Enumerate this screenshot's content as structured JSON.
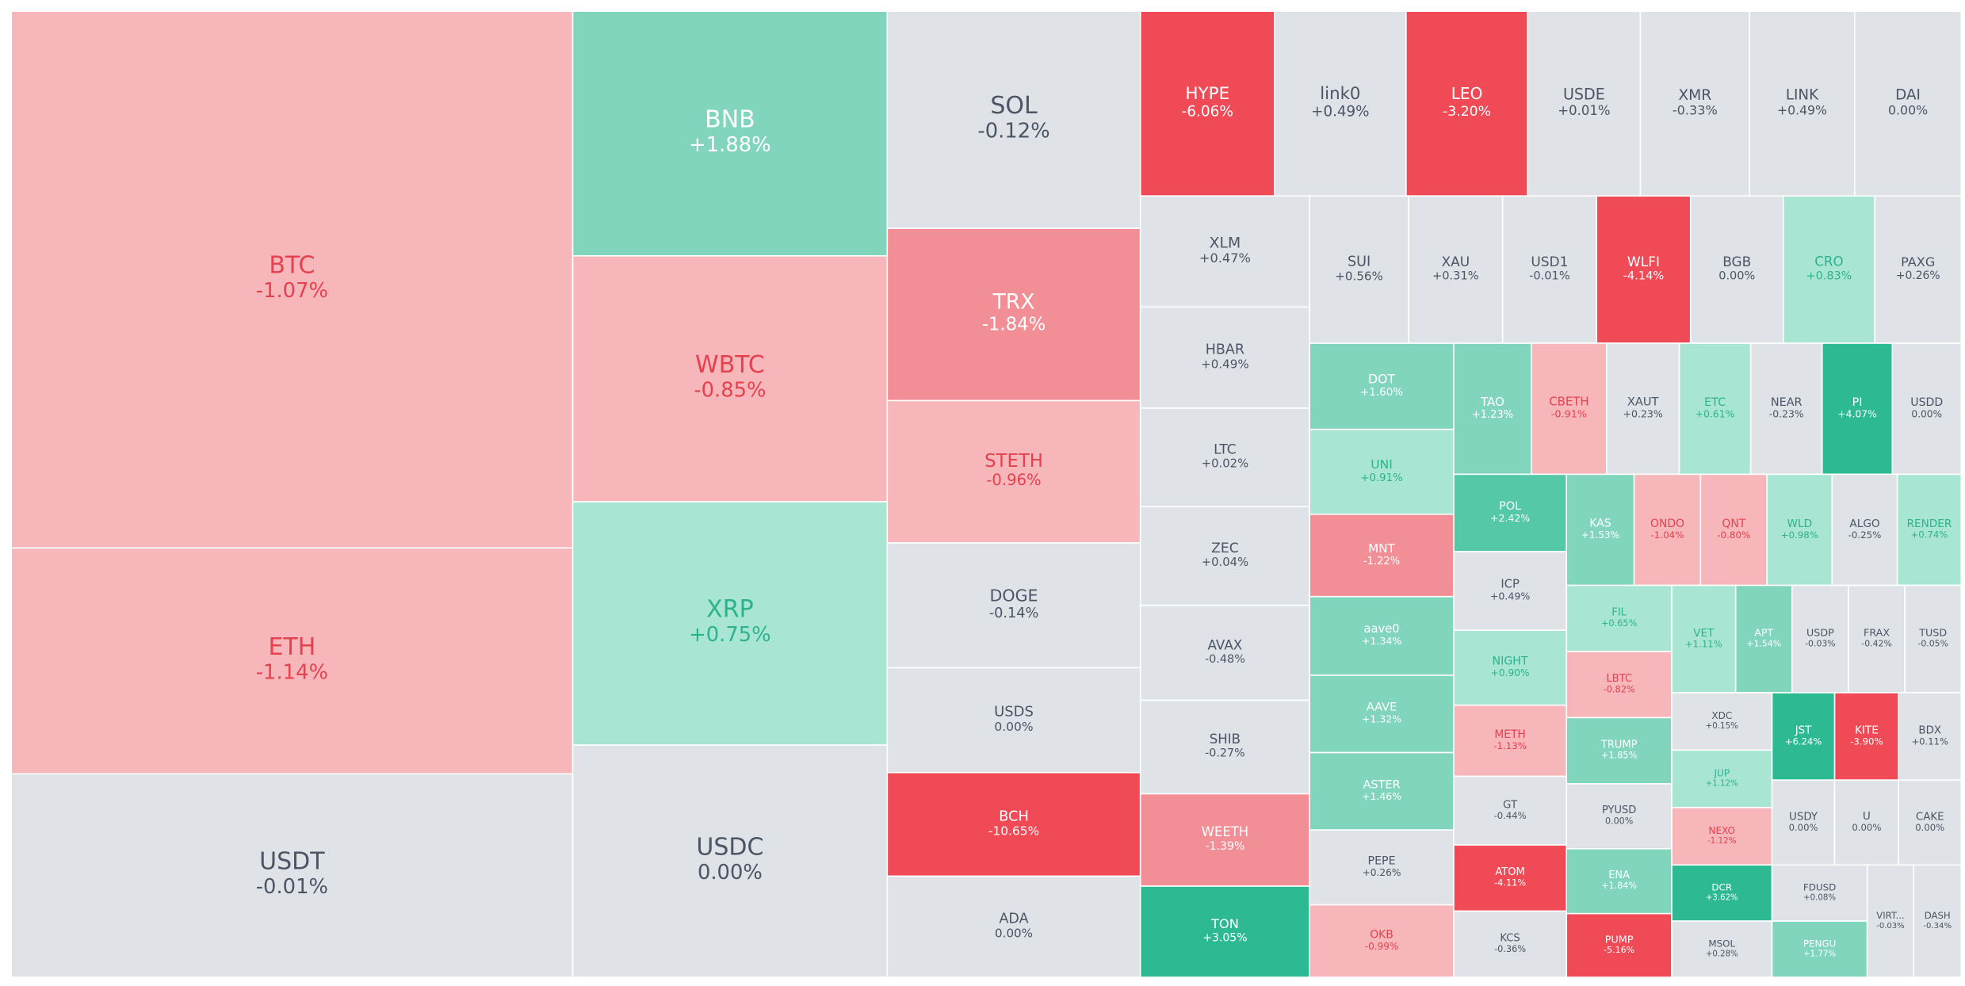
{
  "chart_data": {
    "type": "treemap",
    "categories": [
      "BTC",
      "ETH",
      "USDT",
      "BNB",
      "WBTC",
      "XRP",
      "USDC",
      "SOL",
      "TRX",
      "STETH",
      "DOGE",
      "USDS",
      "BCH",
      "ADA",
      "HYPE",
      "link0",
      "LEO",
      "USDE",
      "XMR",
      "LINK",
      "DAI",
      "XLM",
      "HBAR",
      "LTC",
      "ZEC",
      "AVAX",
      "SHIB",
      "WEETH",
      "TON",
      "SUI",
      "XAU",
      "USD1",
      "WLFI",
      "BGB",
      "CRO",
      "PAXG",
      "DOT",
      "UNI",
      "MNT",
      "aave0",
      "AAVE",
      "ASTER",
      "PEPE",
      "OKB",
      "TAO",
      "CBETH",
      "XAUT",
      "ETC",
      "NEAR",
      "PI",
      "USDD",
      "POL",
      "ICP",
      "NIGHT",
      "METH",
      "GT",
      "ATOM",
      "KCS",
      "KAS",
      "ONDO",
      "QNT",
      "WLD",
      "ALGO",
      "RENDER",
      "FIL",
      "LBTC",
      "TRUMP",
      "PYUSD",
      "ENA",
      "PUMP",
      "VET",
      "APT",
      "USDP",
      "FRAX",
      "TUSD",
      "XDC",
      "JUP",
      "NEXO",
      "DCR",
      "MSOL",
      "JST",
      "KITE",
      "BDX",
      "USDY",
      "U",
      "CAKE",
      "FDUSD",
      "PENGU",
      "VIRT...",
      "DASH"
    ],
    "values": [
      -1.07,
      -1.14,
      -0.01,
      1.88,
      -0.85,
      0.75,
      0,
      -0.12,
      -1.84,
      -0.96,
      -0.14,
      0,
      -10.65,
      0,
      -6.06,
      0.49,
      -3.2,
      0.01,
      -0.33,
      0.49,
      0,
      0.47,
      0.49,
      0.02,
      0.04,
      -0.48,
      -0.27,
      -1.39,
      3.05,
      0.56,
      0.31,
      -0.01,
      -4.14,
      0,
      0.83,
      0.26,
      1.6,
      0.91,
      -1.22,
      1.34,
      1.32,
      1.46,
      0.26,
      -0.99,
      1.23,
      -0.91,
      0.23,
      0.61,
      -0.23,
      4.07,
      0,
      2.42,
      0.49,
      0.9,
      -1.13,
      -0.44,
      -4.11,
      -0.36,
      1.53,
      -1.04,
      -0.8,
      0.98,
      -0.25,
      0.74,
      0.65,
      -0.82,
      1.85,
      0,
      1.84,
      -5.16,
      1.11,
      1.54,
      -0.03,
      -0.42,
      -0.05,
      0.15,
      1.12,
      -1.12,
      3.62,
      0.28,
      6.24,
      -3.9,
      0.11,
      0,
      0,
      0,
      0.08,
      1.77,
      -0.03,
      -0.34
    ],
    "value_labels": [
      "-1.07%",
      "-1.14%",
      "-0.01%",
      "+1.88%",
      "-0.85%",
      "+0.75%",
      "0.00%",
      "-0.12%",
      "-1.84%",
      "-0.96%",
      "-0.14%",
      "0.00%",
      "-10.65%",
      "0.00%",
      "-6.06%",
      "+0.49%",
      "-3.20%",
      "+0.01%",
      "-0.33%",
      "+0.49%",
      "0.00%",
      "+0.47%",
      "+0.49%",
      "+0.02%",
      "+0.04%",
      "-0.48%",
      "-0.27%",
      "-1.39%",
      "+3.05%",
      "+0.56%",
      "+0.31%",
      "-0.01%",
      "-4.14%",
      "0.00%",
      "+0.83%",
      "+0.26%",
      "+1.60%",
      "+0.91%",
      "-1.22%",
      "+1.34%",
      "+1.32%",
      "+1.46%",
      "+0.26%",
      "-0.99%",
      "+1.23%",
      "-0.91%",
      "+0.23%",
      "+0.61%",
      "-0.23%",
      "+4.07%",
      "0.00%",
      "+2.42%",
      "+0.49%",
      "+0.90%",
      "-1.13%",
      "-0.44%",
      "-4.11%",
      "-0.36%",
      "+1.53%",
      "-1.04%",
      "-0.80%",
      "+0.98%",
      "-0.25%",
      "+0.74%",
      "+0.65%",
      "-0.82%",
      "+1.85%",
      "0.00%",
      "+1.84%",
      "-5.16%",
      "+1.11%",
      "+1.54%",
      "-0.03%",
      "-0.42%",
      "-0.05%",
      "+0.15%",
      "+1.12%",
      "-1.12%",
      "+3.62%",
      "+0.28%",
      "+6.24%",
      "-3.90%",
      "+0.11%",
      "0.00%",
      "0.00%",
      "0.00%",
      "+0.08%",
      "+1.77%",
      "-0.03%",
      "-0.34%"
    ]
  }
}
